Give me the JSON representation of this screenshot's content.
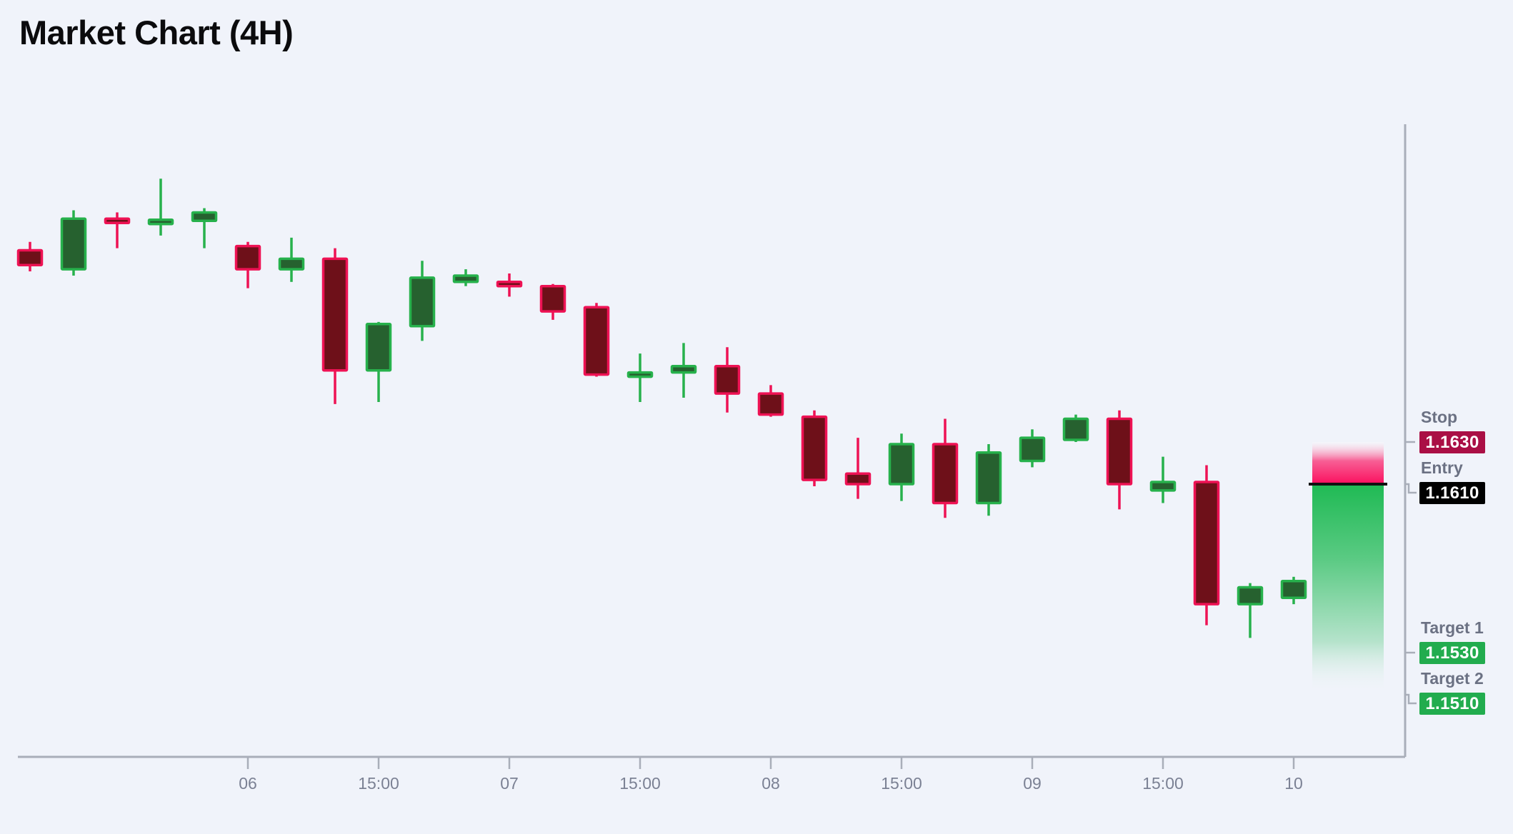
{
  "title": "Market Chart (4H)",
  "colors": {
    "background": "#f0f3fa",
    "bull_stroke": "#27b14c",
    "bull_fill": "#26612f",
    "bear_stroke": "#ee1254",
    "bear_fill": "#6e1019",
    "axis": "#a9aeb9",
    "tick_label": "#7b8194",
    "level_label": "#6b7183",
    "entry_line": "#111111",
    "risk_zone": "#fb0f5e",
    "reward_zone": "#1fba54",
    "badge_text": "#ffffff"
  },
  "chart_data": {
    "type": "candlestick",
    "title": "Market Chart (4H)",
    "timeframe": "4H",
    "legend": [],
    "grid": false,
    "y_axis": {
      "position": "right",
      "min": 1.148,
      "max": 1.178,
      "numeric_labels_visible": false
    },
    "x_ticks": [
      {
        "index": 5,
        "label": "06"
      },
      {
        "index": 8,
        "label": "15:00"
      },
      {
        "index": 11,
        "label": "07"
      },
      {
        "index": 14,
        "label": "15:00"
      },
      {
        "index": 17,
        "label": "08"
      },
      {
        "index": 20,
        "label": "15:00"
      },
      {
        "index": 23,
        "label": "09"
      },
      {
        "index": 26,
        "label": "15:00"
      },
      {
        "index": 29,
        "label": "10"
      }
    ],
    "candles": [
      {
        "open": 1.1721,
        "high": 1.1725,
        "low": 1.1711,
        "close": 1.1714
      },
      {
        "open": 1.1712,
        "high": 1.174,
        "low": 1.1709,
        "close": 1.1736
      },
      {
        "open": 1.1736,
        "high": 1.1739,
        "low": 1.1722,
        "close": 1.1734
      },
      {
        "open": 1.1734,
        "high": 1.1755,
        "low": 1.1728,
        "close": 1.1735
      },
      {
        "open": 1.1735,
        "high": 1.1741,
        "low": 1.1722,
        "close": 1.1739
      },
      {
        "open": 1.1723,
        "high": 1.1725,
        "low": 1.1703,
        "close": 1.1712
      },
      {
        "open": 1.1712,
        "high": 1.1727,
        "low": 1.1706,
        "close": 1.1717
      },
      {
        "open": 1.1717,
        "high": 1.1722,
        "low": 1.1648,
        "close": 1.1664
      },
      {
        "open": 1.1664,
        "high": 1.1687,
        "low": 1.1649,
        "close": 1.1686
      },
      {
        "open": 1.1685,
        "high": 1.1716,
        "low": 1.1678,
        "close": 1.1708
      },
      {
        "open": 1.1706,
        "high": 1.1712,
        "low": 1.1704,
        "close": 1.1709
      },
      {
        "open": 1.1706,
        "high": 1.171,
        "low": 1.1699,
        "close": 1.1704
      },
      {
        "open": 1.1704,
        "high": 1.1705,
        "low": 1.1688,
        "close": 1.1692
      },
      {
        "open": 1.1694,
        "high": 1.1696,
        "low": 1.1661,
        "close": 1.1662
      },
      {
        "open": 1.1661,
        "high": 1.1672,
        "low": 1.1649,
        "close": 1.1663
      },
      {
        "open": 1.1663,
        "high": 1.1677,
        "low": 1.1651,
        "close": 1.1666
      },
      {
        "open": 1.1666,
        "high": 1.1675,
        "low": 1.1644,
        "close": 1.1653
      },
      {
        "open": 1.1653,
        "high": 1.1657,
        "low": 1.1642,
        "close": 1.1643
      },
      {
        "open": 1.1642,
        "high": 1.1645,
        "low": 1.1609,
        "close": 1.1612
      },
      {
        "open": 1.1615,
        "high": 1.1632,
        "low": 1.1603,
        "close": 1.161
      },
      {
        "open": 1.161,
        "high": 1.1634,
        "low": 1.1602,
        "close": 1.1629
      },
      {
        "open": 1.1629,
        "high": 1.1641,
        "low": 1.1594,
        "close": 1.1601
      },
      {
        "open": 1.1601,
        "high": 1.1629,
        "low": 1.1595,
        "close": 1.1625
      },
      {
        "open": 1.1621,
        "high": 1.1636,
        "low": 1.1618,
        "close": 1.1632
      },
      {
        "open": 1.1631,
        "high": 1.1643,
        "low": 1.163,
        "close": 1.1641
      },
      {
        "open": 1.1641,
        "high": 1.1645,
        "low": 1.1598,
        "close": 1.161
      },
      {
        "open": 1.1607,
        "high": 1.1623,
        "low": 1.1601,
        "close": 1.1611
      },
      {
        "open": 1.1611,
        "high": 1.1619,
        "low": 1.1543,
        "close": 1.1553
      },
      {
        "open": 1.1553,
        "high": 1.1563,
        "low": 1.1537,
        "close": 1.1561
      },
      {
        "open": 1.1556,
        "high": 1.1566,
        "low": 1.1553,
        "close": 1.1564
      }
    ]
  },
  "trade": {
    "levels": [
      {
        "label": "Stop",
        "value": "1.1630",
        "price": 1.163,
        "badge_color": "#aa0f45",
        "connector": "straight"
      },
      {
        "label": "Entry",
        "value": "1.1610",
        "price": 1.161,
        "badge_color": "#000000",
        "connector": "elbow"
      },
      {
        "label": "Target 1",
        "value": "1.1530",
        "price": 1.153,
        "badge_color": "#22ac4e",
        "connector": "straight"
      },
      {
        "label": "Target 2",
        "value": "1.1510",
        "price": 1.151,
        "badge_color": "#22ac4e",
        "connector": "elbow"
      }
    ],
    "zone": {
      "stop_price": 1.163,
      "entry_price": 1.161,
      "target_price": 1.151
    }
  }
}
